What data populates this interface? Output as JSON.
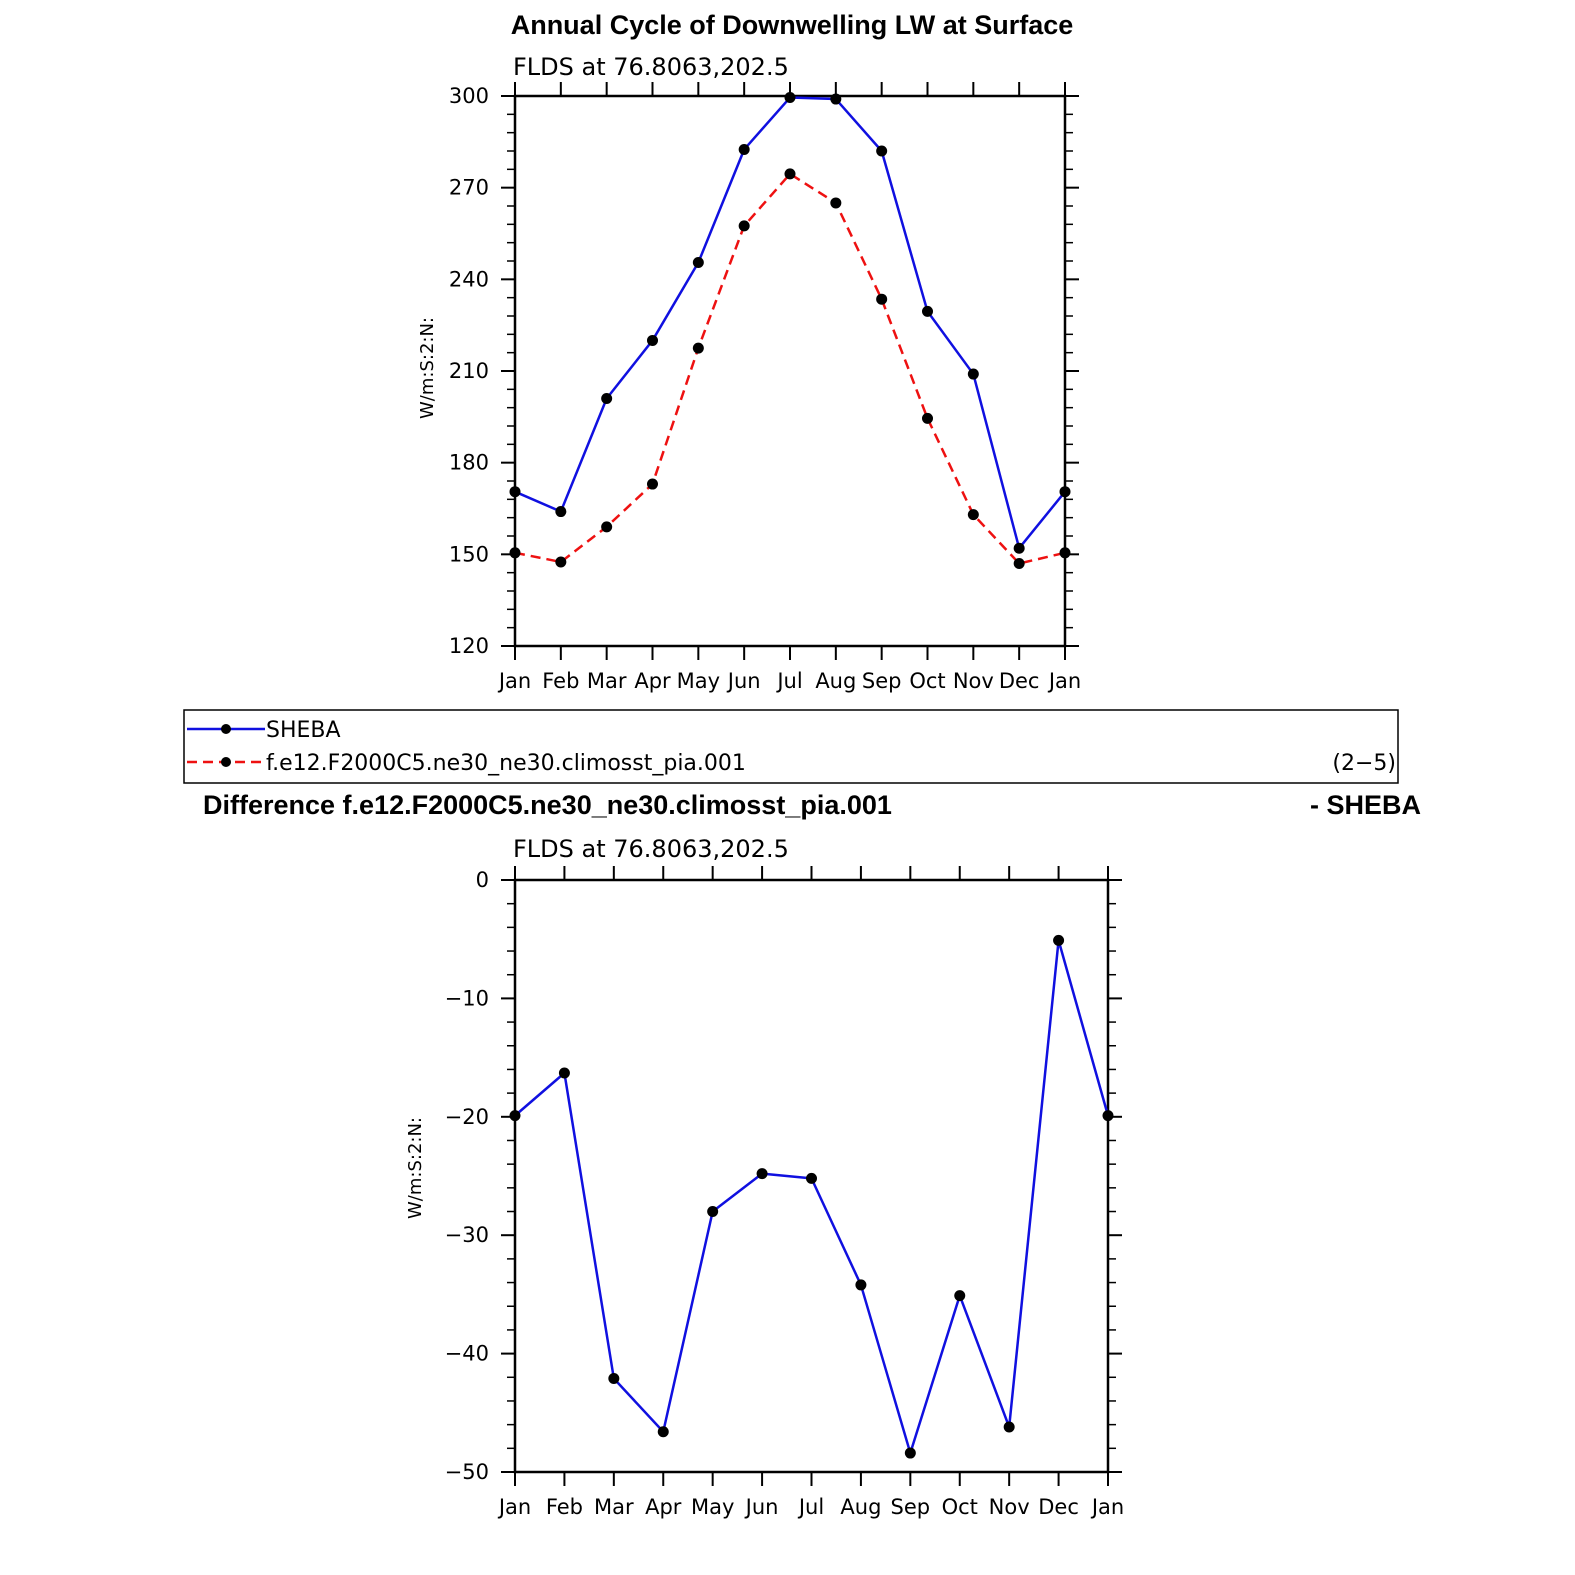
{
  "colors": {
    "sheba": "#1010e0",
    "model": "#ee1111",
    "marker": "#000000",
    "axis": "#000000"
  },
  "top": {
    "title": "Annual Cycle of Downwelling LW at Surface",
    "subtitle": "FLDS at 76.8063,202.5",
    "ylabel": "W/m:S:2:N:"
  },
  "legend": {
    "items": [
      {
        "label": "SHEBA",
        "style": "solid"
      },
      {
        "label": "f.e12.F2000C5.ne30_ne30.climosst_pia.001",
        "style": "dashed"
      }
    ],
    "panel_note": "(2−5)"
  },
  "bottom": {
    "title_left": "Difference f.e12.F2000C5.ne30_ne30.climosst_pia.001",
    "title_right": "- SHEBA",
    "subtitle": "FLDS at 76.8063,202.5",
    "ylabel": "W/m:S:2:N:"
  },
  "chart_data": [
    {
      "type": "line",
      "title": "Annual Cycle of Downwelling LW at Surface",
      "subtitle": "FLDS at 76.8063,202.5",
      "ylabel": "W/m:S:2:N:",
      "categories": [
        "Jan",
        "Feb",
        "Mar",
        "Apr",
        "May",
        "Jun",
        "Jul",
        "Aug",
        "Sep",
        "Oct",
        "Nov",
        "Dec",
        "Jan"
      ],
      "ylim": [
        120,
        300
      ],
      "yticks": [
        120,
        150,
        180,
        210,
        240,
        270,
        300
      ],
      "yticklabels": [
        "120",
        "150",
        "180",
        "210",
        "240",
        "270",
        "300"
      ],
      "series": [
        {
          "name": "SHEBA",
          "values": [
            170.5,
            164,
            201,
            220,
            245.5,
            282.5,
            299.5,
            299,
            282,
            229.5,
            209,
            152,
            170.5
          ]
        },
        {
          "name": "f.e12.F2000C5.ne30_ne30.climosst_pia.001",
          "values": [
            150.5,
            147.5,
            159,
            173,
            217.5,
            257.5,
            274.5,
            265,
            233.5,
            194.5,
            163,
            147,
            150.5
          ]
        }
      ],
      "legend": "below"
    },
    {
      "type": "line",
      "title": "Difference f.e12.F2000C5.ne30_ne30.climosst_pia.001 - SHEBA",
      "subtitle": "FLDS at 76.8063,202.5",
      "ylabel": "W/m:S:2:N:",
      "categories": [
        "Jan",
        "Feb",
        "Mar",
        "Apr",
        "May",
        "Jun",
        "Jul",
        "Aug",
        "Sep",
        "Oct",
        "Nov",
        "Dec",
        "Jan"
      ],
      "ylim": [
        -50,
        0
      ],
      "yticks": [
        -50,
        -40,
        -30,
        -20,
        -10,
        0
      ],
      "yticklabels": [
        "−50",
        "−40",
        "−30",
        "−20",
        "−10",
        "0"
      ],
      "series": [
        {
          "values": [
            -19.9,
            -16.3,
            -42.1,
            -46.6,
            -28,
            -24.8,
            -25.2,
            -34.2,
            -48.4,
            -35.1,
            -46.2,
            -5.1,
            -19.9
          ]
        }
      ]
    }
  ]
}
